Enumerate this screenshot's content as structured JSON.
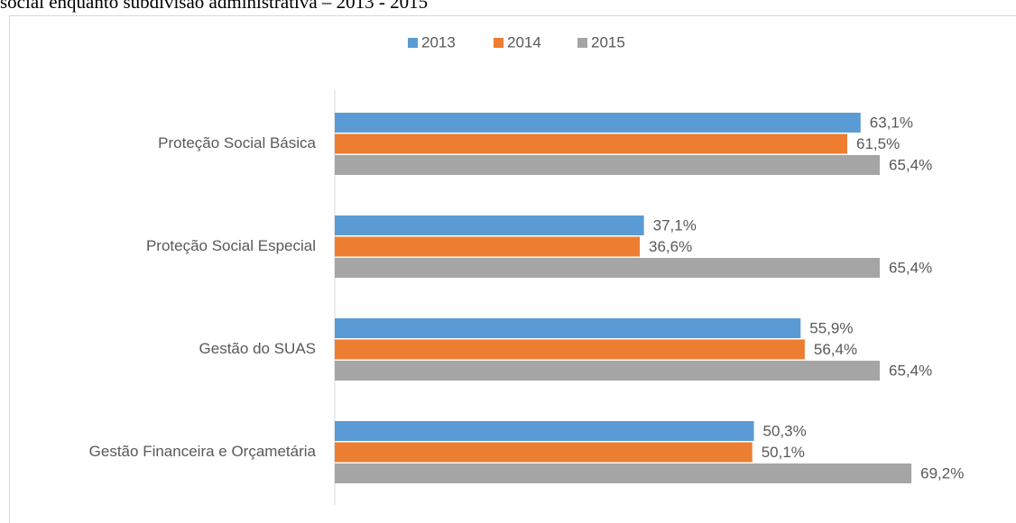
{
  "chart_data": {
    "type": "bar",
    "orientation": "horizontal",
    "title": "social enquanto subdivisão administrativa – 2013 - 2015",
    "categories": [
      "Proteção Social Básica",
      "Proteção Social Especial",
      "Gestão do SUAS",
      "Gestão Financeira e Orçametária"
    ],
    "series": [
      {
        "name": "2013",
        "color": "#5b9bd5",
        "values": [
          63.1,
          37.1,
          55.9,
          50.3
        ],
        "value_labels": [
          "63,1%",
          "37,1%",
          "55,9%",
          "50,3%"
        ]
      },
      {
        "name": "2014",
        "color": "#ed7d31",
        "values": [
          61.5,
          36.6,
          56.4,
          50.1
        ],
        "value_labels": [
          "61,5%",
          "36,6%",
          "56,4%",
          "50,1%"
        ]
      },
      {
        "name": "2015",
        "color": "#a5a5a5",
        "values": [
          65.4,
          65.4,
          65.4,
          69.2
        ],
        "value_labels": [
          "65,4%",
          "65,4%",
          "65,4%",
          "69,2%"
        ]
      }
    ],
    "xlim": [
      0,
      70
    ],
    "legend": "top"
  }
}
